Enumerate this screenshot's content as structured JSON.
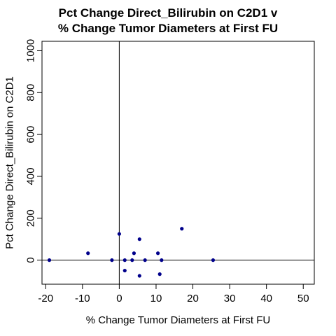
{
  "chart_data": {
    "type": "scatter",
    "title_lines": [
      "Pct Change Direct_Bilirubin on C2D1 v",
      "% Change Tumor Diameters at First FU"
    ],
    "xlabel": "% Change Tumor Diameters at First FU",
    "ylabel": "Pct Change Direct_Bilirubin on C2D1",
    "xlim": [
      -21,
      53
    ],
    "ylim": [
      -115,
      1045
    ],
    "x_ticks": [
      -20,
      -10,
      0,
      10,
      20,
      30,
      40,
      50
    ],
    "y_ticks": [
      0,
      200,
      400,
      600,
      800,
      1000
    ],
    "x_tick_labels": [
      "-20",
      "-10",
      "0",
      "10",
      "20",
      "30",
      "40",
      "50"
    ],
    "y_tick_labels": [
      "0",
      "200",
      "400",
      "600",
      "800",
      "1000"
    ],
    "reference_lines": {
      "vertical_x": 0,
      "horizontal_y": 0
    },
    "grid": false,
    "legend": "none",
    "point_color": "#00008B",
    "points": [
      {
        "x": -19,
        "y": 0
      },
      {
        "x": -8.5,
        "y": 33
      },
      {
        "x": -2,
        "y": 0
      },
      {
        "x": 0,
        "y": 125
      },
      {
        "x": 1.5,
        "y": 0
      },
      {
        "x": 1.5,
        "y": -50
      },
      {
        "x": 3.5,
        "y": 0
      },
      {
        "x": 4,
        "y": 33
      },
      {
        "x": 5.5,
        "y": 100
      },
      {
        "x": 5.5,
        "y": -75
      },
      {
        "x": 7,
        "y": 0
      },
      {
        "x": 10.5,
        "y": 33
      },
      {
        "x": 11,
        "y": -67
      },
      {
        "x": 11.5,
        "y": 0
      },
      {
        "x": 17,
        "y": 150
      },
      {
        "x": 25.5,
        "y": 0
      }
    ]
  }
}
